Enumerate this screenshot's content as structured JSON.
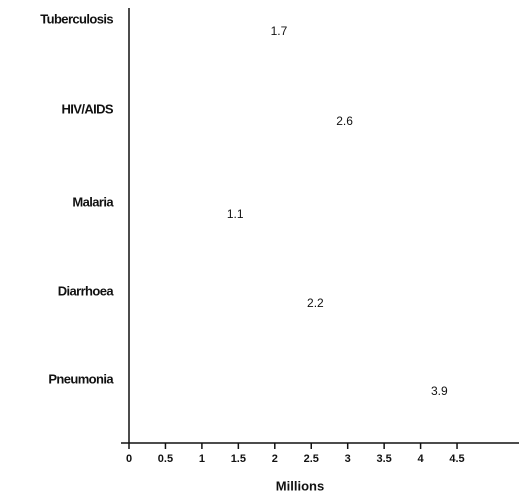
{
  "chart_data": {
    "type": "label-dot",
    "categories": [
      "Tuberculosis",
      "HIV/AIDS",
      "Malaria",
      "Diarrhoea",
      "Pneumonia"
    ],
    "values": [
      1.7,
      2.6,
      1.1,
      2.2,
      3.9
    ],
    "xlabel": "Millions",
    "xlim": [
      0,
      5.35
    ],
    "xticks": [
      0,
      0.5,
      1,
      1.5,
      2,
      2.5,
      3,
      3.5,
      4,
      4.5
    ]
  }
}
